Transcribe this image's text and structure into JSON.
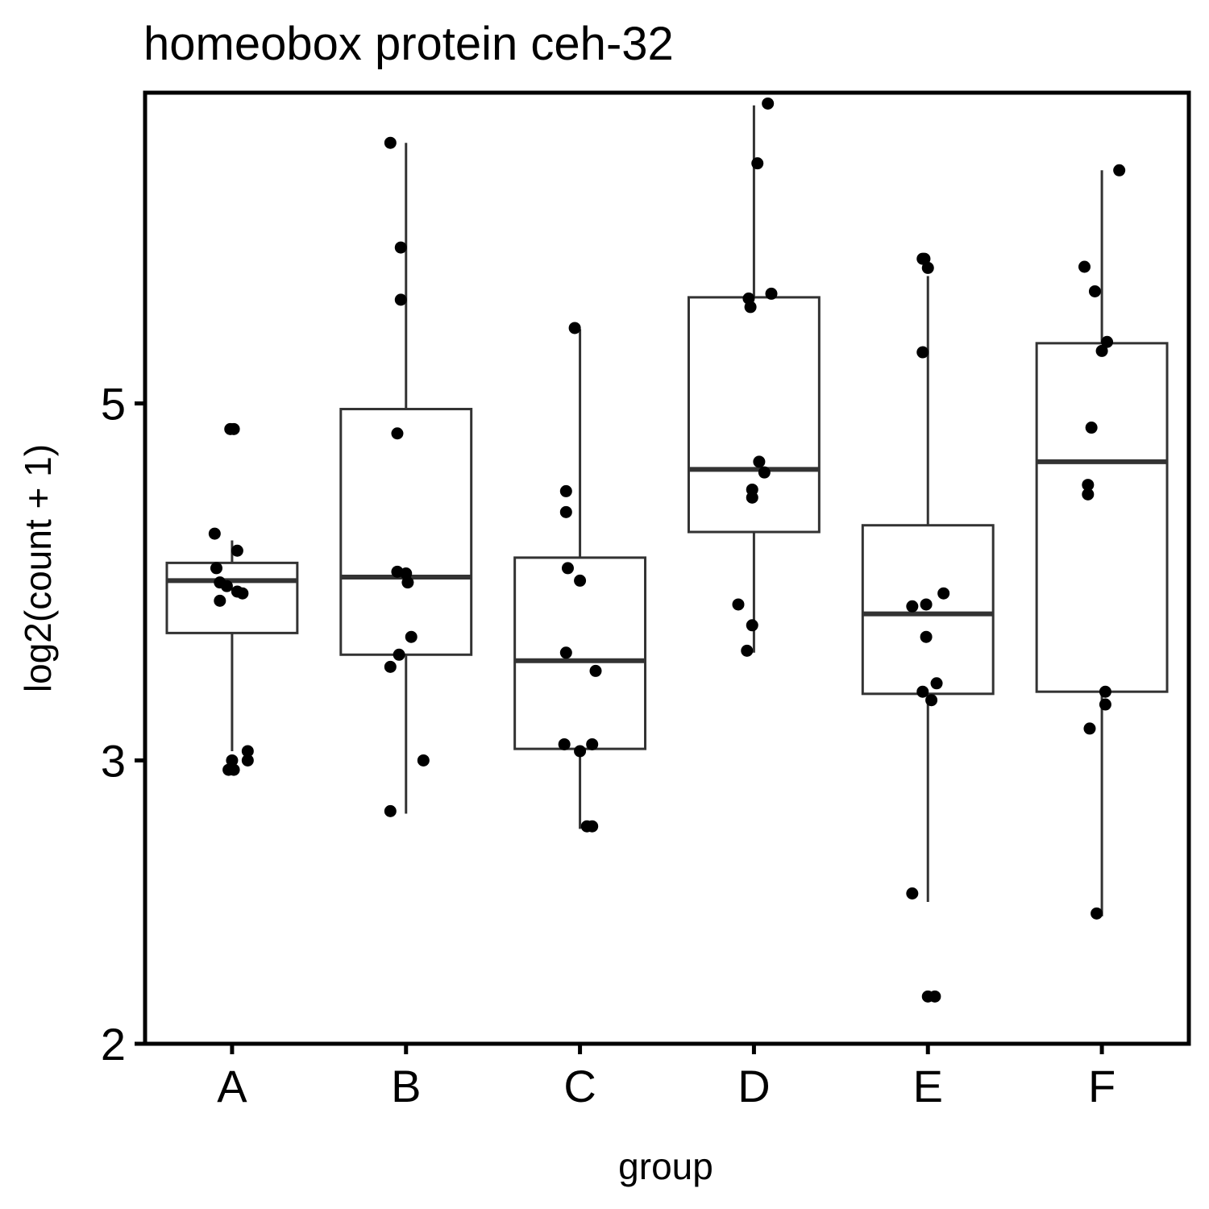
{
  "chart_data": {
    "type": "box",
    "title": "homeobox protein ceh-32",
    "xlabel": "group",
    "ylabel": "log2(count + 1)",
    "y_scale": "log2",
    "y_ticks": [
      2,
      3,
      5
    ],
    "ylim": [
      2.0,
      7.8
    ],
    "categories": [
      "A",
      "B",
      "C",
      "D",
      "E",
      "F"
    ],
    "grid": false,
    "legend": "none",
    "colors": {
      "box_stroke": "#333333",
      "points": "#000000",
      "frame": "#000000"
    },
    "boxes": [
      {
        "category": "A",
        "lower_whisker": 3.04,
        "q1": 3.6,
        "median": 3.88,
        "q3": 3.98,
        "upper_whisker": 4.11
      },
      {
        "category": "B",
        "lower_whisker": 2.78,
        "q1": 3.49,
        "median": 3.9,
        "q3": 4.96,
        "upper_whisker": 7.26
      },
      {
        "category": "C",
        "lower_whisker": 2.72,
        "q1": 3.05,
        "median": 3.46,
        "q3": 4.01,
        "upper_whisker": 5.56
      },
      {
        "category": "D",
        "lower_whisker": 3.5,
        "q1": 4.16,
        "median": 4.55,
        "q3": 5.82,
        "upper_whisker": 7.66
      },
      {
        "category": "E",
        "lower_whisker": 2.45,
        "q1": 3.3,
        "median": 3.7,
        "q3": 4.2,
        "upper_whisker": 6.0
      },
      {
        "category": "F",
        "lower_whisker": 2.4,
        "q1": 3.31,
        "median": 4.6,
        "q3": 5.45,
        "upper_whisker": 6.98
      }
    ],
    "points": [
      {
        "category": "A",
        "dx": -0.01,
        "y": 4.82
      },
      {
        "category": "A",
        "dx": 0.01,
        "y": 4.82
      },
      {
        "category": "A",
        "dx": -0.1,
        "y": 4.15
      },
      {
        "category": "A",
        "dx": 0.03,
        "y": 4.05
      },
      {
        "category": "A",
        "dx": -0.09,
        "y": 3.95
      },
      {
        "category": "A",
        "dx": -0.07,
        "y": 3.87
      },
      {
        "category": "A",
        "dx": -0.03,
        "y": 3.85
      },
      {
        "category": "A",
        "dx": 0.03,
        "y": 3.82
      },
      {
        "category": "A",
        "dx": 0.06,
        "y": 3.81
      },
      {
        "category": "A",
        "dx": -0.07,
        "y": 3.77
      },
      {
        "category": "A",
        "dx": 0.09,
        "y": 3.04
      },
      {
        "category": "A",
        "dx": 0.0,
        "y": 3.0
      },
      {
        "category": "A",
        "dx": 0.09,
        "y": 3.0
      },
      {
        "category": "A",
        "dx": -0.02,
        "y": 2.96
      },
      {
        "category": "A",
        "dx": 0.01,
        "y": 2.96
      },
      {
        "category": "B",
        "dx": -0.09,
        "y": 7.26
      },
      {
        "category": "B",
        "dx": -0.03,
        "y": 6.25
      },
      {
        "category": "B",
        "dx": -0.03,
        "y": 5.8
      },
      {
        "category": "B",
        "dx": -0.05,
        "y": 4.79
      },
      {
        "category": "B",
        "dx": -0.05,
        "y": 3.93
      },
      {
        "category": "B",
        "dx": 0.0,
        "y": 3.92
      },
      {
        "category": "B",
        "dx": 0.01,
        "y": 3.87
      },
      {
        "category": "B",
        "dx": 0.03,
        "y": 3.58
      },
      {
        "category": "B",
        "dx": -0.04,
        "y": 3.49
      },
      {
        "category": "B",
        "dx": -0.09,
        "y": 3.43
      },
      {
        "category": "B",
        "dx": 0.1,
        "y": 3.0
      },
      {
        "category": "B",
        "dx": -0.09,
        "y": 2.79
      },
      {
        "category": "C",
        "dx": -0.03,
        "y": 5.57
      },
      {
        "category": "C",
        "dx": -0.08,
        "y": 4.41
      },
      {
        "category": "C",
        "dx": -0.08,
        "y": 4.28
      },
      {
        "category": "C",
        "dx": -0.07,
        "y": 3.95
      },
      {
        "category": "C",
        "dx": 0.0,
        "y": 3.88
      },
      {
        "category": "C",
        "dx": -0.08,
        "y": 3.5
      },
      {
        "category": "C",
        "dx": 0.09,
        "y": 3.41
      },
      {
        "category": "C",
        "dx": -0.09,
        "y": 3.07
      },
      {
        "category": "C",
        "dx": 0.07,
        "y": 3.07
      },
      {
        "category": "C",
        "dx": 0.0,
        "y": 3.04
      },
      {
        "category": "C",
        "dx": 0.04,
        "y": 2.73
      },
      {
        "category": "C",
        "dx": 0.07,
        "y": 2.73
      },
      {
        "category": "D",
        "dx": 0.08,
        "y": 7.68
      },
      {
        "category": "D",
        "dx": 0.02,
        "y": 7.05
      },
      {
        "category": "D",
        "dx": 0.1,
        "y": 5.85
      },
      {
        "category": "D",
        "dx": -0.03,
        "y": 5.81
      },
      {
        "category": "D",
        "dx": -0.02,
        "y": 5.74
      },
      {
        "category": "D",
        "dx": 0.03,
        "y": 4.6
      },
      {
        "category": "D",
        "dx": 0.06,
        "y": 4.53
      },
      {
        "category": "D",
        "dx": -0.01,
        "y": 4.42
      },
      {
        "category": "D",
        "dx": -0.01,
        "y": 4.37
      },
      {
        "category": "D",
        "dx": -0.09,
        "y": 3.75
      },
      {
        "category": "D",
        "dx": -0.01,
        "y": 3.64
      },
      {
        "category": "D",
        "dx": -0.04,
        "y": 3.51
      },
      {
        "category": "E",
        "dx": -0.02,
        "y": 6.15
      },
      {
        "category": "E",
        "dx": 0.0,
        "y": 6.07
      },
      {
        "category": "E",
        "dx": -0.03,
        "y": 6.15
      },
      {
        "category": "E",
        "dx": -0.03,
        "y": 5.38
      },
      {
        "category": "E",
        "dx": 0.09,
        "y": 3.81
      },
      {
        "category": "E",
        "dx": -0.01,
        "y": 3.75
      },
      {
        "category": "E",
        "dx": -0.09,
        "y": 3.74
      },
      {
        "category": "E",
        "dx": -0.01,
        "y": 3.58
      },
      {
        "category": "E",
        "dx": 0.05,
        "y": 3.35
      },
      {
        "category": "E",
        "dx": -0.03,
        "y": 3.31
      },
      {
        "category": "E",
        "dx": 0.02,
        "y": 3.27
      },
      {
        "category": "E",
        "dx": -0.09,
        "y": 2.48
      },
      {
        "category": "E",
        "dx": 0.0,
        "y": 2.14
      },
      {
        "category": "E",
        "dx": 0.04,
        "y": 2.14
      },
      {
        "category": "F",
        "dx": 0.1,
        "y": 6.98
      },
      {
        "category": "F",
        "dx": -0.1,
        "y": 6.08
      },
      {
        "category": "F",
        "dx": -0.04,
        "y": 5.87
      },
      {
        "category": "F",
        "dx": 0.03,
        "y": 5.46
      },
      {
        "category": "F",
        "dx": 0.0,
        "y": 5.39
      },
      {
        "category": "F",
        "dx": -0.06,
        "y": 4.83
      },
      {
        "category": "F",
        "dx": -0.08,
        "y": 4.45
      },
      {
        "category": "F",
        "dx": -0.08,
        "y": 4.39
      },
      {
        "category": "F",
        "dx": 0.02,
        "y": 3.31
      },
      {
        "category": "F",
        "dx": 0.02,
        "y": 3.25
      },
      {
        "category": "F",
        "dx": -0.07,
        "y": 3.14
      },
      {
        "category": "F",
        "dx": -0.03,
        "y": 2.41
      }
    ]
  }
}
